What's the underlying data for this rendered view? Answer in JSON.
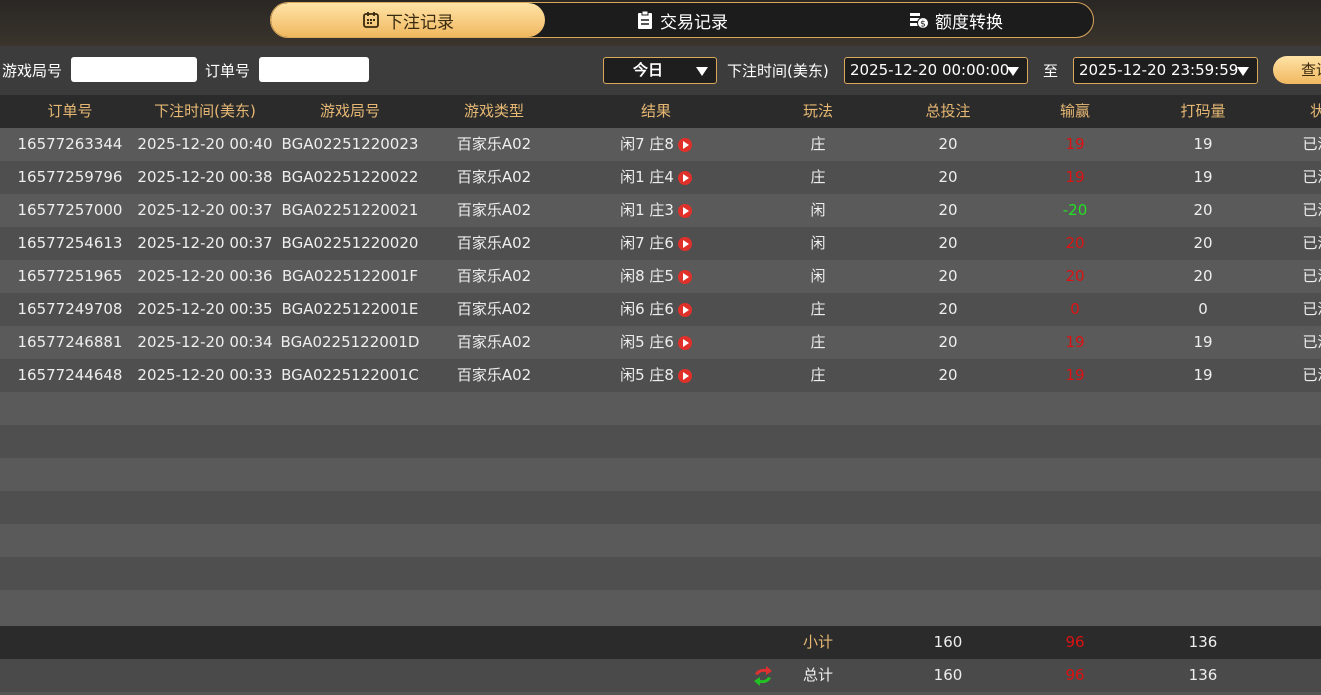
{
  "tabs": [
    "下注记录",
    "交易记录",
    "额度转换"
  ],
  "filters": {
    "round_label": "游戏局号",
    "order_label": "订单号",
    "period": "今日",
    "time_label": "下注时间(美东)",
    "start": "2025-12-20 00:00:00",
    "to": "至",
    "end": "2025-12-20 23:59:59",
    "query": "查询"
  },
  "table": {
    "columns": [
      "订单号",
      "下注时间(美东)",
      "游戏局号",
      "游戏类型",
      "结果",
      "玩法",
      "总投注",
      "输赢",
      "打码量",
      "状态"
    ],
    "rows": [
      [
        "16577263344",
        "2025-12-20 00:40",
        "BGA02251220023",
        "百家乐A02",
        "闲7 庄8",
        "庄",
        20,
        19,
        19,
        "已派彩"
      ],
      [
        "16577259796",
        "2025-12-20 00:38",
        "BGA02251220022",
        "百家乐A02",
        "闲1 庄4",
        "庄",
        20,
        19,
        19,
        "已派彩"
      ],
      [
        "16577257000",
        "2025-12-20 00:37",
        "BGA02251220021",
        "百家乐A02",
        "闲1 庄3",
        "闲",
        20,
        -20,
        20,
        "已派彩"
      ],
      [
        "16577254613",
        "2025-12-20 00:37",
        "BGA02251220020",
        "百家乐A02",
        "闲7 庄6",
        "闲",
        20,
        20,
        20,
        "已派彩"
      ],
      [
        "16577251965",
        "2025-12-20 00:36",
        "BGA0225122001F",
        "百家乐A02",
        "闲8 庄5",
        "闲",
        20,
        20,
        20,
        "已派彩"
      ],
      [
        "16577249708",
        "2025-12-20 00:35",
        "BGA0225122001E",
        "百家乐A02",
        "闲6 庄6",
        "庄",
        20,
        0,
        0,
        "已派彩"
      ],
      [
        "16577246881",
        "2025-12-20 00:34",
        "BGA0225122001D",
        "百家乐A02",
        "闲5 庄6",
        "庄",
        20,
        19,
        19,
        "已派彩"
      ],
      [
        "16577244648",
        "2025-12-20 00:33",
        "BGA0225122001C",
        "百家乐A02",
        "闲5 庄8",
        "庄",
        20,
        19,
        19,
        "已派彩"
      ]
    ],
    "subtotal": {
      "label": "小计",
      "total_bet": 160,
      "win_loss": 96,
      "turnover": 136
    },
    "total": {
      "label": "总计",
      "total_bet": 160,
      "win_loss": 96,
      "turnover": 136
    }
  }
}
